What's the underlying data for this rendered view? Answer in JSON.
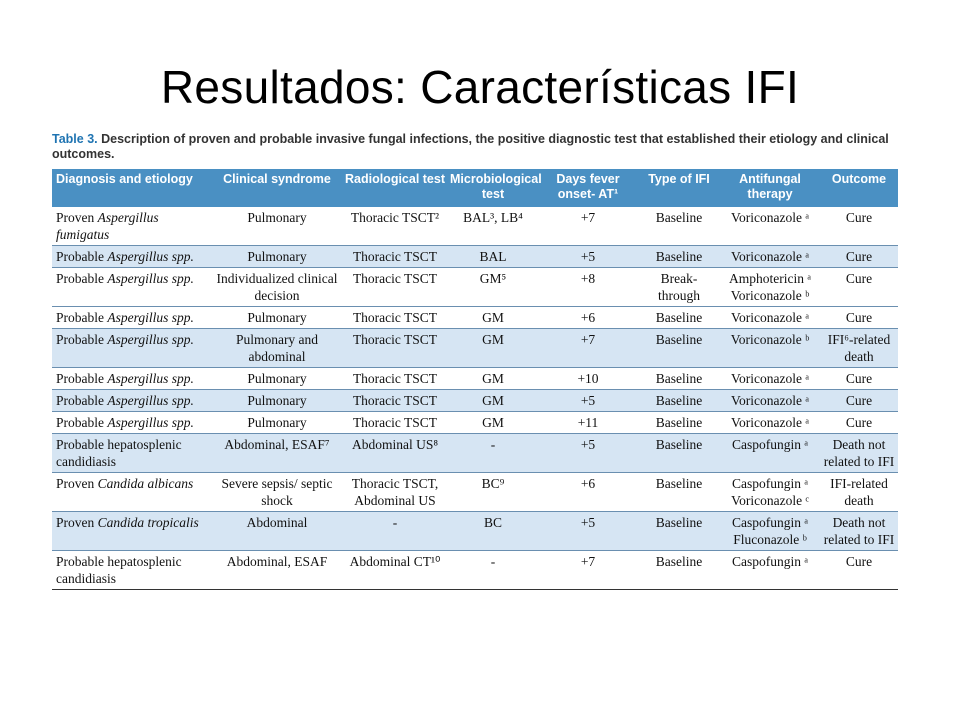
{
  "slide": {
    "title": "Resultados: Características IFI"
  },
  "caption": {
    "label": "Table 3.",
    "text": "Description of proven and probable invasive fungal infections, the positive diagnostic test that established their etiology and clinical outcomes."
  },
  "headers": [
    "Diagnosis and etiology",
    "Clinical syndrome",
    "Radiological test",
    "Microbiological test",
    "Days fever onset- AT¹",
    "Type of IFI",
    "Antifungal therapy",
    "Outcome"
  ],
  "rows": [
    {
      "diag_prefix": "Proven",
      "diag_organism": "Aspergillus fumigatus",
      "syndrome": "Pulmonary",
      "radio": "Thoracic TSCT²",
      "micro": "BAL³, LB⁴",
      "days": "+7",
      "type": "Baseline",
      "therapy": "Voriconazole ᵃ",
      "outcome": "Cure"
    },
    {
      "diag_prefix": "Probable",
      "diag_organism": "Aspergillus spp.",
      "syndrome": "Pulmonary",
      "radio": "Thoracic TSCT",
      "micro": "BAL",
      "days": "+5",
      "type": "Baseline",
      "therapy": "Voriconazole ᵃ",
      "outcome": "Cure"
    },
    {
      "diag_prefix": "Probable",
      "diag_organism": "Aspergillus spp.",
      "syndrome": "Individualized clinical decision",
      "radio": "Thoracic TSCT",
      "micro": "GM⁵",
      "days": "+8",
      "type": "Break-through",
      "therapy": "Amphotericin ᵃ Voriconazole ᵇ",
      "outcome": "Cure"
    },
    {
      "diag_prefix": "Probable",
      "diag_organism": "Aspergillus spp.",
      "syndrome": "Pulmonary",
      "radio": "Thoracic TSCT",
      "micro": "GM",
      "days": "+6",
      "type": "Baseline",
      "therapy": "Voriconazole ᵃ",
      "outcome": "Cure"
    },
    {
      "diag_prefix": "Probable",
      "diag_organism": "Aspergillus spp.",
      "syndrome": "Pulmonary and abdominal",
      "radio": "Thoracic TSCT",
      "micro": "GM",
      "days": "+7",
      "type": "Baseline",
      "therapy": "Voriconazole ᵇ",
      "outcome": "IFI⁶-related death"
    },
    {
      "diag_prefix": "Probable",
      "diag_organism": "Aspergillus spp.",
      "syndrome": "Pulmonary",
      "radio": "Thoracic TSCT",
      "micro": "GM",
      "days": "+10",
      "type": "Baseline",
      "therapy": "Voriconazole ᵃ",
      "outcome": "Cure"
    },
    {
      "diag_prefix": "Probable",
      "diag_organism": "Aspergillus spp.",
      "syndrome": "Pulmonary",
      "radio": "Thoracic TSCT",
      "micro": "GM",
      "days": "+5",
      "type": "Baseline",
      "therapy": "Voriconazole ᵃ",
      "outcome": "Cure"
    },
    {
      "diag_prefix": "Probable",
      "diag_organism": "Aspergillus spp.",
      "syndrome": "Pulmonary",
      "radio": "Thoracic TSCT",
      "micro": "GM",
      "days": "+11",
      "type": "Baseline",
      "therapy": "Voriconazole ᵃ",
      "outcome": "Cure"
    },
    {
      "diag_prefix": "Probable hepatosplenic candidiasis",
      "diag_organism": "",
      "syndrome": "Abdominal, ESAF⁷",
      "radio": "Abdominal US⁸",
      "micro": "-",
      "days": "+5",
      "type": "Baseline",
      "therapy": "Caspofungin ᵃ",
      "outcome": "Death not related to IFI"
    },
    {
      "diag_prefix": "Proven",
      "diag_organism": "Candida albicans",
      "syndrome": "Severe sepsis/ septic shock",
      "radio": "Thoracic TSCT, Abdominal US",
      "micro": "BC⁹",
      "days": "+6",
      "type": "Baseline",
      "therapy": "Caspofungin ᵃ Voriconazole ᶜ",
      "outcome": "IFI-related death"
    },
    {
      "diag_prefix": "Proven",
      "diag_organism": "Candida tropicalis",
      "syndrome": "Abdominal",
      "radio": "-",
      "micro": "BC",
      "days": "+5",
      "type": "Baseline",
      "therapy": "Caspofungin ᵃ Fluconazole ᵇ",
      "outcome": "Death not related to IFI"
    },
    {
      "diag_prefix": "Probable hepatosplenic candidiasis",
      "diag_organism": "",
      "syndrome": "Abdominal, ESAF",
      "radio": "Abdominal CT¹⁰",
      "micro": "-",
      "days": "+7",
      "type": "Baseline",
      "therapy": "Caspofungin ᵃ",
      "outcome": "Cure"
    }
  ],
  "colors": {
    "header_bg": "#4a90c3",
    "shade_bg": "#d6e5f3",
    "caption_label": "#1f74b2"
  }
}
